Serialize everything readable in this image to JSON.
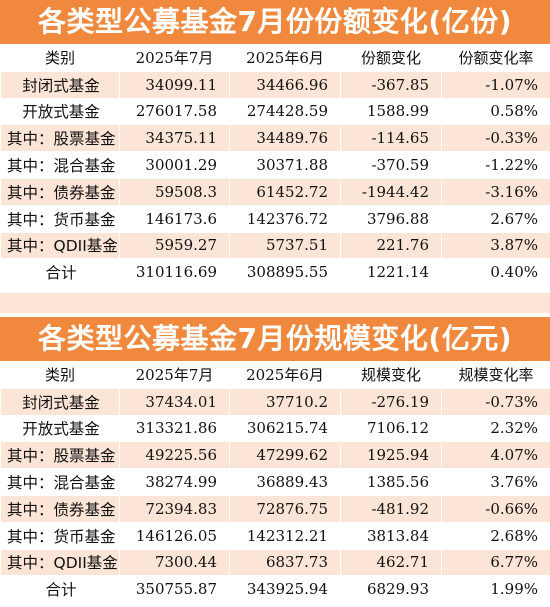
{
  "table1": {
    "title": "各类型公募基金7月份份额变化(亿份)",
    "headers": [
      "类别",
      "2025年7月",
      "2025年6月",
      "份额变化",
      "份额变化率"
    ],
    "rows": [
      [
        "封闭式基金",
        "34099.11",
        "34466.96",
        "-367.85",
        "-1.07%"
      ],
      [
        "开放式基金",
        "276017.58",
        "274428.59",
        "1588.99",
        "0.58%"
      ],
      [
        "其中：股票基金",
        "34375.11",
        "34489.76",
        "-114.65",
        "-0.33%"
      ],
      [
        "其中：混合基金",
        "30001.29",
        "30371.88",
        "-370.59",
        "-1.22%"
      ],
      [
        "其中：债券基金",
        "59508.3",
        "61452.72",
        "-1944.42",
        "-3.16%"
      ],
      [
        "其中：货币基金",
        "146173.6",
        "142376.72",
        "3796.88",
        "2.67%"
      ],
      [
        "其中：QDII基金",
        "5959.27",
        "5737.51",
        "221.76",
        "3.87%"
      ],
      [
        "合计",
        "310116.69",
        "308895.55",
        "1221.14",
        "0.40%"
      ]
    ]
  },
  "table2": {
    "title": "各类型公募基金7月份规模变化(亿元)",
    "headers": [
      "类别",
      "2025年7月",
      "2025年6月",
      "规模变化",
      "规模变化率"
    ],
    "rows": [
      [
        "封闭式基金",
        "37434.01",
        "37710.2",
        "-276.19",
        "-0.73%"
      ],
      [
        "开放式基金",
        "313321.86",
        "306215.74",
        "7106.12",
        "2.32%"
      ],
      [
        "其中：股票基金",
        "49225.56",
        "47299.62",
        "1925.94",
        "4.07%"
      ],
      [
        "其中：混合基金",
        "38274.99",
        "36889.43",
        "1385.56",
        "3.76%"
      ],
      [
        "其中：债券基金",
        "72394.83",
        "72876.75",
        "-481.92",
        "-0.66%"
      ],
      [
        "其中：货币基金",
        "146126.05",
        "142312.21",
        "3813.84",
        "2.68%"
      ],
      [
        "其中：QDII基金",
        "7300.44",
        "6837.73",
        "462.71",
        "6.77%"
      ],
      [
        "合计",
        "350755.87",
        "343925.94",
        "6829.93",
        "1.99%"
      ]
    ]
  }
}
